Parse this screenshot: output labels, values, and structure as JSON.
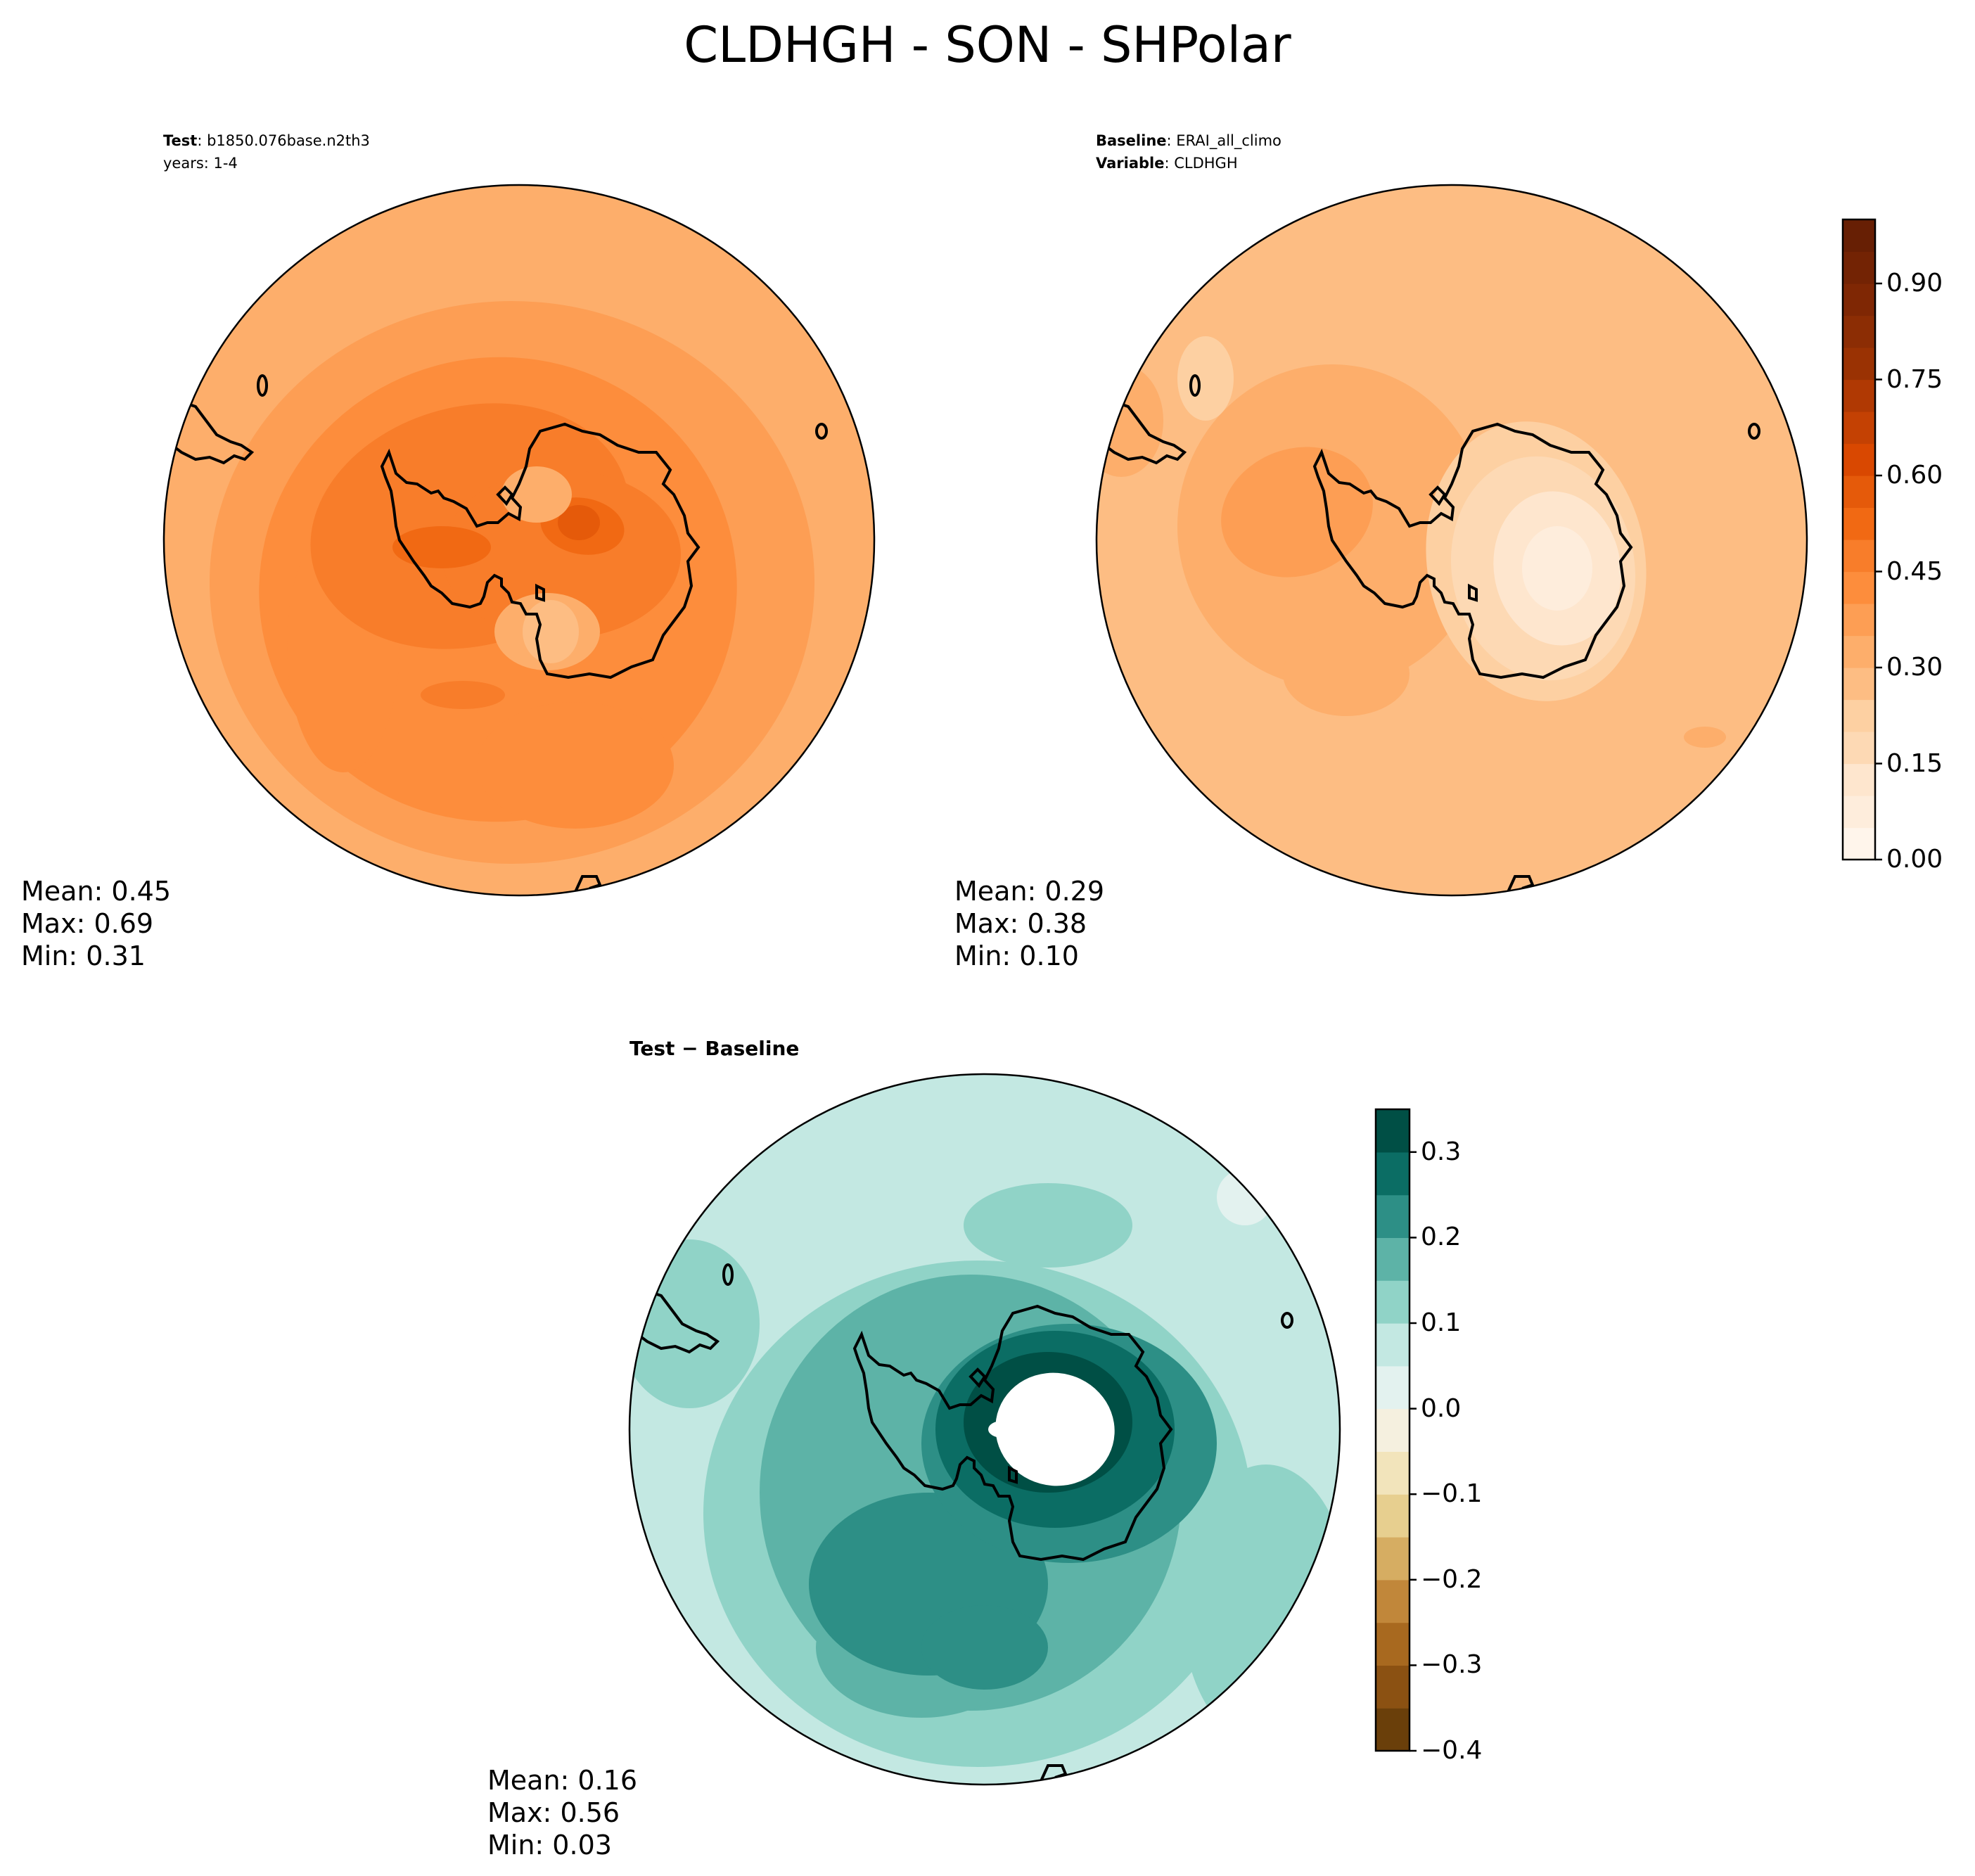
{
  "title": "CLDHGH - SON - SHPolar",
  "panels": [
    {
      "id": "test",
      "header": [
        {
          "label": "Test",
          "value": ": b1850.076base.n2th3"
        },
        {
          "label": "",
          "value": "years: 1-4"
        }
      ],
      "stats": {
        "mean": "Mean:  0.45",
        "max": "Max:  0.69",
        "min": "Min:  0.31"
      },
      "colormap": "Oranges",
      "field_description": "mostly orange 0.40-0.55, maximum 0.60-0.70 over West Antarctica and Ross Sea, minimum ~0.3 over East Antarctica interior"
    },
    {
      "id": "baseline",
      "header": [
        {
          "label": "Baseline",
          "value": ": ERAI_all_climo"
        },
        {
          "label": "Variable",
          "value": ": CLDHGH"
        }
      ],
      "stats": {
        "mean": "Mean:  0.29",
        "max": "Max:  0.38",
        "min": "Min:  0.10"
      },
      "colormap": "Oranges",
      "field_description": "mostly 0.28-0.38 light orange, minimum 0.10-0.20 over East Antarctica plateau"
    },
    {
      "id": "difference",
      "header": [
        {
          "label": "Test − Baseline",
          "value": ""
        }
      ],
      "stats": {
        "mean": "Mean:  0.16",
        "max": "Max:  0.56",
        "min": "Min:  0.03"
      },
      "colormap": "BrBG",
      "field_description": "positive everywhere, 0.1-0.2 over oceans, 0.3+ rings around Antarctic coast, center > 0.35 shown white"
    }
  ],
  "colorbars": [
    {
      "id": "abs-colorbar",
      "range": [
        0.0,
        1.0
      ],
      "ticks": [
        "0.00",
        "0.15",
        "0.30",
        "0.45",
        "0.60",
        "0.75",
        "0.90"
      ],
      "tick_values": [
        0.0,
        0.15,
        0.3,
        0.45,
        0.6,
        0.75,
        0.9
      ],
      "levels": 20,
      "colors": [
        "#fff5eb",
        "#feeddc",
        "#fee6ce",
        "#fdd9b4",
        "#fdd0a2",
        "#fdbd83",
        "#fdae6b",
        "#fd9e54",
        "#fd8d3c",
        "#f87d2a",
        "#f16913",
        "#e55a0a",
        "#d94801",
        "#c44103",
        "#b03903",
        "#9a3203",
        "#8c2d04",
        "#7f2704",
        "#732304",
        "#671f04"
      ]
    },
    {
      "id": "diff-colorbar",
      "range": [
        -0.4,
        0.35
      ],
      "ticks": [
        "−0.4",
        "−0.3",
        "−0.2",
        "−0.1",
        "0.0",
        "0.1",
        "0.2",
        "0.3"
      ],
      "tick_values": [
        -0.4,
        -0.3,
        -0.2,
        -0.1,
        0.0,
        0.1,
        0.2,
        0.3
      ],
      "levels": 15,
      "colors": [
        "#6a3f0a",
        "#8b5112",
        "#a8691f",
        "#c1873a",
        "#d6ad62",
        "#e7cf8f",
        "#f2e4bb",
        "#f5f0df",
        "#e3f2ef",
        "#c3e8e2",
        "#90d3c7",
        "#5db3a7",
        "#2d8f86",
        "#0b6d64",
        "#004f45"
      ]
    }
  ]
}
